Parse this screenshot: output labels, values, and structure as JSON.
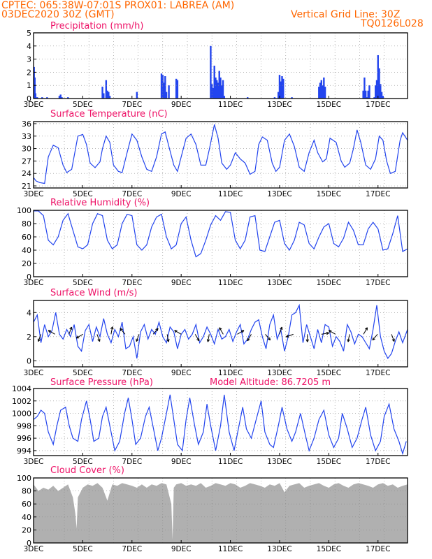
{
  "header": {
    "line1_left": "CPTEC:   065:38W-07:01S   PROX01: LABREA (AM)",
    "line2_left": "03DEC2020 30Z (GMT)",
    "line2_right": "Vertical Grid Line: 30Z",
    "line3_right": "TQ0126L028"
  },
  "colors": {
    "series": "#2244ee",
    "bars": "#2244ee",
    "cloud": "#b0b0b0",
    "header": "#ff6600",
    "title": "#ee1166"
  },
  "chart_data": [
    {
      "type": "bar",
      "title": "Precipitation (mm/h)",
      "xlim": [
        3,
        18.2
      ],
      "ylim": [
        0,
        5
      ],
      "yticks": [
        0,
        1,
        2,
        3,
        4,
        5
      ],
      "xticks": [
        3,
        5,
        7,
        9,
        11,
        13,
        15,
        17
      ],
      "xticklabels": [
        "3DEC",
        "5DEC",
        "7DEC",
        "9DEC",
        "11DEC",
        "13DEC",
        "15DEC",
        "17DEC"
      ],
      "x": [
        3.02,
        3.05,
        3.08,
        3.15,
        3.35,
        3.55,
        4.05,
        4.1,
        4.15,
        4.4,
        5.8,
        5.85,
        5.95,
        6.0,
        6.05,
        6.1,
        7.2,
        8.2,
        8.25,
        8.3,
        8.35,
        8.4,
        8.5,
        8.8,
        8.85,
        10.2,
        10.25,
        10.3,
        10.35,
        10.4,
        10.45,
        10.5,
        10.55,
        10.6,
        10.65,
        10.7,
        10.75,
        11.7,
        12.8,
        12.95,
        13.0,
        13.05,
        13.1,
        13.15,
        13.5,
        14.6,
        14.65,
        14.7,
        14.75,
        14.8,
        14.85,
        16.4,
        16.45,
        16.5,
        16.55,
        16.6,
        16.65,
        16.85,
        16.9,
        16.95,
        17.0,
        17.05,
        17.1,
        17.15,
        17.2
      ],
      "values": [
        2.4,
        1.6,
        0.4,
        0.1,
        0.1,
        0.1,
        0.2,
        0.3,
        0.1,
        0.1,
        0.9,
        0.4,
        1.4,
        0.6,
        0.5,
        0.2,
        0.5,
        1.9,
        1.8,
        1.2,
        1.7,
        0.5,
        1.0,
        1.5,
        1.4,
        4.0,
        1.1,
        0.8,
        2.5,
        1.6,
        1.4,
        1.2,
        2.1,
        1.6,
        1.0,
        1.4,
        0.2,
        0.1,
        0.1,
        0.5,
        1.8,
        1.3,
        1.7,
        1.5,
        0.1,
        0.9,
        1.2,
        1.4,
        1.0,
        1.6,
        0.9,
        0.6,
        1.6,
        0.6,
        0.1,
        0.6,
        1.0,
        0.1,
        1.0,
        1.4,
        3.3,
        2.3,
        1.1,
        0.5,
        0.2
      ]
    },
    {
      "type": "line",
      "title": "Surface Temperature (nC)",
      "xlim": [
        3,
        18.2
      ],
      "ylim": [
        20.5,
        36.5
      ],
      "yticks": [
        21,
        24,
        27,
        30,
        33,
        36
      ],
      "xticks": [
        3,
        5,
        7,
        9,
        11,
        13,
        15,
        17
      ],
      "xticklabels": [
        "3DEC",
        "5DEC",
        "7DEC",
        "9DEC",
        "11DEC",
        "13DEC",
        "15DEC",
        "17DEC"
      ],
      "x": [
        3.0,
        3.1,
        3.25,
        3.45,
        3.6,
        3.8,
        4.0,
        4.2,
        4.35,
        4.55,
        4.8,
        5.0,
        5.15,
        5.3,
        5.5,
        5.7,
        5.8,
        5.95,
        6.1,
        6.25,
        6.45,
        6.6,
        6.8,
        7.0,
        7.2,
        7.4,
        7.6,
        7.8,
        8.0,
        8.2,
        8.35,
        8.5,
        8.7,
        8.85,
        9.0,
        9.2,
        9.4,
        9.6,
        9.8,
        10.0,
        10.15,
        10.35,
        10.5,
        10.65,
        10.85,
        11.0,
        11.2,
        11.4,
        11.6,
        11.8,
        12.0,
        12.15,
        12.3,
        12.5,
        12.7,
        12.85,
        13.0,
        13.2,
        13.4,
        13.6,
        13.8,
        14.0,
        14.2,
        14.4,
        14.55,
        14.75,
        14.9,
        15.05,
        15.3,
        15.5,
        15.65,
        15.85,
        16.0,
        16.15,
        16.3,
        16.5,
        16.7,
        16.9,
        17.05,
        17.2,
        17.35,
        17.5,
        17.7,
        17.9,
        18.0,
        18.2
      ],
      "values": [
        23.0,
        22.2,
        21.8,
        21.6,
        28.0,
        30.8,
        30.2,
        26.0,
        24.2,
        25.0,
        33.0,
        33.4,
        31.0,
        26.5,
        25.4,
        26.8,
        30.0,
        33.0,
        31.5,
        26.0,
        24.5,
        24.2,
        29.0,
        33.5,
        32.0,
        28.0,
        25.0,
        24.5,
        28.0,
        33.5,
        34.0,
        30.5,
        26.0,
        24.5,
        28.0,
        32.5,
        33.5,
        31.0,
        26.0,
        26.0,
        30.0,
        35.8,
        32.5,
        26.5,
        25.0,
        26.0,
        29.0,
        27.5,
        26.5,
        23.8,
        24.5,
        31.0,
        32.8,
        32.0,
        26.5,
        24.5,
        25.5,
        32.0,
        33.5,
        30.5,
        25.5,
        24.5,
        29.0,
        32.0,
        29.0,
        26.8,
        27.5,
        32.5,
        31.5,
        27.0,
        25.5,
        26.5,
        30.0,
        34.5,
        31.5,
        26.0,
        25.0,
        27.5,
        33.0,
        32.0,
        27.0,
        24.0,
        24.5,
        32.0,
        33.8,
        32.0
      ]
    },
    {
      "type": "line",
      "title": "Relative Humidity (%)",
      "xlim": [
        3,
        18.2
      ],
      "ylim": [
        0,
        100
      ],
      "yticks": [
        0,
        20,
        40,
        60,
        80,
        100
      ],
      "xticks": [
        3,
        5,
        7,
        9,
        11,
        13,
        15,
        17
      ],
      "xticklabels": [
        "3DEC",
        "5DEC",
        "7DEC",
        "9DEC",
        "11DEC",
        "13DEC",
        "15DEC",
        "17DEC"
      ],
      "x": [
        3.0,
        3.2,
        3.4,
        3.6,
        3.8,
        4.0,
        4.2,
        4.4,
        4.6,
        4.8,
        5.0,
        5.2,
        5.4,
        5.6,
        5.8,
        6.0,
        6.2,
        6.4,
        6.6,
        6.8,
        7.0,
        7.2,
        7.4,
        7.6,
        7.8,
        8.0,
        8.2,
        8.4,
        8.6,
        8.8,
        9.0,
        9.2,
        9.4,
        9.6,
        9.8,
        10.0,
        10.2,
        10.4,
        10.6,
        10.8,
        11.0,
        11.2,
        11.4,
        11.6,
        11.8,
        12.0,
        12.2,
        12.4,
        12.6,
        12.8,
        13.0,
        13.2,
        13.4,
        13.6,
        13.8,
        14.0,
        14.2,
        14.4,
        14.6,
        14.8,
        15.0,
        15.2,
        15.4,
        15.6,
        15.8,
        16.0,
        16.2,
        16.4,
        16.6,
        16.8,
        17.0,
        17.2,
        17.4,
        17.6,
        17.8,
        18.0,
        18.2
      ],
      "values": [
        99,
        99,
        92,
        55,
        48,
        60,
        85,
        95,
        70,
        45,
        42,
        48,
        80,
        95,
        92,
        55,
        42,
        48,
        80,
        94,
        92,
        48,
        40,
        48,
        75,
        90,
        94,
        60,
        42,
        48,
        80,
        90,
        55,
        30,
        35,
        55,
        78,
        92,
        85,
        98,
        97,
        55,
        42,
        55,
        90,
        92,
        40,
        38,
        60,
        82,
        85,
        50,
        40,
        55,
        82,
        78,
        50,
        42,
        60,
        75,
        80,
        50,
        45,
        58,
        82,
        70,
        48,
        48,
        72,
        82,
        72,
        40,
        42,
        65,
        92,
        38,
        42
      ]
    },
    {
      "type": "line",
      "title": "Surface Wind (m/s)",
      "xlim": [
        3,
        18.2
      ],
      "ylim": [
        -0.5,
        5
      ],
      "yticks": [
        0,
        2,
        4
      ],
      "xticks": [
        3,
        5,
        7,
        9,
        11,
        13,
        15,
        17
      ],
      "xticklabels": [
        "3DEC",
        "5DEC",
        "7DEC",
        "9DEC",
        "11DEC",
        "13DEC",
        "15DEC",
        "17DEC"
      ],
      "x": [
        3.0,
        3.15,
        3.3,
        3.45,
        3.6,
        3.75,
        3.9,
        4.05,
        4.2,
        4.35,
        4.5,
        4.65,
        4.8,
        4.95,
        5.1,
        5.25,
        5.4,
        5.55,
        5.7,
        5.85,
        6.0,
        6.15,
        6.3,
        6.45,
        6.6,
        6.75,
        6.9,
        7.05,
        7.2,
        7.35,
        7.5,
        7.65,
        7.8,
        7.95,
        8.1,
        8.25,
        8.4,
        8.55,
        8.7,
        8.85,
        9.0,
        9.15,
        9.3,
        9.45,
        9.6,
        9.75,
        9.9,
        10.05,
        10.2,
        10.35,
        10.5,
        10.65,
        10.8,
        10.95,
        11.1,
        11.25,
        11.4,
        11.55,
        11.7,
        11.85,
        12.0,
        12.15,
        12.3,
        12.45,
        12.6,
        12.75,
        12.9,
        13.05,
        13.2,
        13.35,
        13.5,
        13.65,
        13.8,
        13.95,
        14.1,
        14.25,
        14.4,
        14.55,
        14.7,
        14.85,
        15.0,
        15.15,
        15.3,
        15.45,
        15.6,
        15.75,
        15.9,
        16.05,
        16.2,
        16.35,
        16.5,
        16.65,
        16.8,
        16.95,
        17.1,
        17.25,
        17.4,
        17.55,
        17.7,
        17.85,
        18.0,
        18.2
      ],
      "values": [
        3.2,
        3.8,
        1.5,
        3.0,
        2.0,
        2.5,
        4.0,
        2.2,
        1.8,
        2.6,
        2.0,
        3.0,
        1.2,
        0.8,
        2.5,
        3.0,
        1.6,
        2.8,
        2.0,
        3.5,
        2.2,
        1.5,
        2.6,
        2.0,
        3.2,
        1.0,
        1.2,
        2.0,
        0.2,
        2.4,
        3.0,
        1.8,
        2.6,
        2.2,
        3.2,
        2.0,
        1.5,
        2.8,
        2.4,
        1.0,
        2.2,
        2.6,
        1.8,
        2.2,
        3.0,
        1.5,
        2.0,
        2.8,
        2.2,
        1.4,
        2.6,
        1.8,
        2.0,
        2.6,
        1.6,
        2.4,
        3.0,
        1.4,
        1.8,
        2.6,
        3.2,
        3.4,
        2.0,
        1.0,
        3.0,
        3.8,
        1.8,
        2.6,
        0.8,
        2.0,
        3.8,
        4.0,
        4.6,
        1.5,
        3.0,
        2.0,
        1.0,
        2.6,
        1.5,
        3.0,
        2.8,
        1.2,
        2.0,
        1.6,
        0.8,
        3.0,
        2.4,
        1.4,
        2.2,
        2.0,
        1.5,
        1.0,
        2.6,
        4.6,
        2.0,
        0.8,
        0.2,
        0.6,
        1.6,
        2.4,
        1.5,
        2.6
      ]
    },
    {
      "type": "line",
      "title": "Surface Pressure (hPa)",
      "annotation": "Model Altitude: 86.7205 m",
      "xlim": [
        3,
        18.2
      ],
      "ylim": [
        993.2,
        1004
      ],
      "yticks": [
        994,
        996,
        998,
        1000,
        1002,
        1004
      ],
      "xticks": [
        3,
        5,
        7,
        9,
        11,
        13,
        15,
        17
      ],
      "xticklabels": [
        "3DEC",
        "5DEC",
        "7DEC",
        "9DEC",
        "11DEC",
        "13DEC",
        "15DEC",
        "17DEC"
      ],
      "x": [
        3.0,
        3.15,
        3.3,
        3.45,
        3.6,
        3.8,
        3.95,
        4.1,
        4.3,
        4.45,
        4.6,
        4.8,
        4.95,
        5.15,
        5.3,
        5.45,
        5.65,
        5.8,
        5.95,
        6.15,
        6.3,
        6.5,
        6.7,
        6.85,
        7.0,
        7.15,
        7.35,
        7.55,
        7.7,
        7.9,
        8.05,
        8.2,
        8.4,
        8.55,
        8.7,
        8.85,
        9.05,
        9.2,
        9.35,
        9.55,
        9.7,
        9.9,
        10.05,
        10.2,
        10.4,
        10.6,
        10.75,
        10.95,
        11.15,
        11.3,
        11.5,
        11.65,
        11.85,
        12.05,
        12.25,
        12.4,
        12.6,
        12.75,
        12.95,
        13.1,
        13.3,
        13.5,
        13.65,
        13.85,
        14.05,
        14.2,
        14.4,
        14.6,
        14.8,
        15.0,
        15.2,
        15.4,
        15.55,
        15.75,
        15.95,
        16.15,
        16.35,
        16.5,
        16.7,
        16.9,
        17.1,
        17.25,
        17.45,
        17.65,
        17.85,
        18.0,
        18.15
      ],
      "values": [
        999.0,
        999.5,
        1000.5,
        1000.0,
        997.0,
        995.0,
        998.0,
        1000.5,
        1001.0,
        998.0,
        996.0,
        995.5,
        999.0,
        1002.0,
        999.0,
        995.5,
        996.0,
        999.5,
        1001.0,
        997.0,
        994.0,
        995.5,
        1000.0,
        1002.5,
        999.0,
        995.0,
        996.0,
        999.5,
        1001.0,
        997.0,
        994.0,
        996.0,
        1000.0,
        1003.0,
        999.0,
        995.0,
        994.0,
        999.0,
        1002.5,
        998.0,
        995.0,
        997.0,
        1001.5,
        998.0,
        994.0,
        998.0,
        1003.0,
        997.0,
        994.0,
        997.0,
        1001.0,
        997.5,
        996.0,
        999.0,
        1002.0,
        997.0,
        995.0,
        994.5,
        998.0,
        1001.0,
        997.5,
        995.5,
        997.0,
        1000.0,
        996.5,
        994.0,
        996.0,
        999.0,
        1000.5,
        996.5,
        994.5,
        996.0,
        1000.0,
        997.5,
        994.5,
        996.0,
        999.0,
        1001.0,
        996.5,
        994.0,
        995.5,
        999.5,
        1001.5,
        997.5,
        995.5,
        993.5,
        995.5
      ]
    },
    {
      "type": "area",
      "title": "Cloud Cover (%)",
      "xlim": [
        3,
        18.2
      ],
      "ylim": [
        0,
        100
      ],
      "yticks": [
        0,
        20,
        40,
        60,
        80,
        100
      ],
      "xticks": [
        3,
        5,
        7,
        9,
        11,
        13,
        15,
        17
      ],
      "xticklabels": [
        "3DEC",
        "5DEC",
        "7DEC",
        "9DEC",
        "11DEC",
        "13DEC",
        "15DEC",
        "17DEC"
      ],
      "x": [
        3.0,
        3.2,
        3.4,
        3.6,
        3.8,
        4.0,
        4.2,
        4.4,
        4.6,
        4.7,
        4.75,
        4.8,
        5.0,
        5.2,
        5.4,
        5.6,
        5.8,
        6.0,
        6.2,
        6.4,
        6.6,
        6.8,
        7.0,
        7.2,
        7.4,
        7.6,
        7.8,
        8.0,
        8.2,
        8.4,
        8.6,
        8.65,
        8.7,
        8.8,
        9.0,
        9.2,
        9.4,
        9.6,
        9.8,
        10.0,
        10.2,
        10.4,
        10.6,
        10.8,
        11.0,
        11.2,
        11.4,
        11.6,
        11.8,
        12.0,
        12.2,
        12.4,
        12.6,
        12.8,
        13.0,
        13.2,
        13.4,
        13.6,
        13.8,
        14.0,
        14.2,
        14.4,
        14.6,
        14.8,
        15.0,
        15.2,
        15.4,
        15.6,
        15.8,
        16.0,
        16.2,
        16.4,
        16.6,
        16.8,
        17.0,
        17.2,
        17.4,
        17.6,
        17.8,
        18.0,
        18.2
      ],
      "values": [
        90,
        80,
        85,
        82,
        88,
        80,
        85,
        90,
        70,
        45,
        22,
        70,
        85,
        90,
        88,
        92,
        85,
        65,
        90,
        88,
        92,
        90,
        88,
        85,
        90,
        85,
        90,
        88,
        92,
        90,
        60,
        5,
        85,
        90,
        92,
        88,
        90,
        88,
        92,
        85,
        88,
        92,
        90,
        88,
        92,
        90,
        85,
        88,
        92,
        90,
        88,
        85,
        90,
        88,
        92,
        78,
        88,
        90,
        92,
        85,
        88,
        90,
        92,
        88,
        85,
        90,
        92,
        88,
        85,
        90,
        92,
        90,
        88,
        85,
        90,
        92,
        88,
        90,
        85,
        88,
        90
      ]
    }
  ]
}
